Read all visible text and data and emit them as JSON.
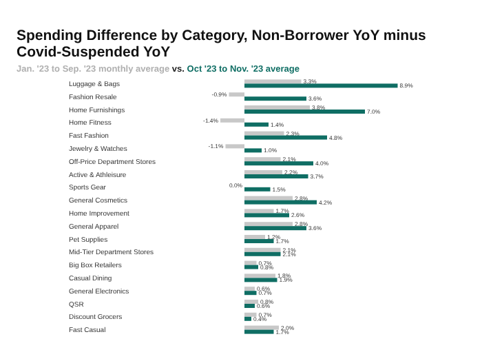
{
  "chart_data": {
    "type": "bar",
    "orientation": "horizontal",
    "title": "Spending Difference by Category, Non-Borrower YoY minus Covid-Suspended YoY",
    "legend_title": "vs.",
    "legend": "top",
    "categories": [
      "Luggage & Bags",
      "Fashion Resale",
      "Home Furnishings",
      "Home Fitness",
      "Fast Fashion",
      "Jewelry & Watches",
      "Off-Price Department Stores",
      "Active & Athleisure",
      "Sports Gear",
      "General Cosmetics",
      "Home Improvement",
      "General Apparel",
      "Pet Supplies",
      "Mid-Tier Department Stores",
      "Big Box Retailers",
      "Casual Dining",
      "General Electronics",
      "QSR",
      "Discount Grocers",
      "Fast Casual"
    ],
    "series": [
      {
        "name": "Jan. '23 to Sep. '23 monthly average",
        "color": "#c8c8c8",
        "values": [
          3.3,
          -0.9,
          3.8,
          -1.4,
          2.3,
          -1.1,
          2.1,
          2.2,
          0.0,
          2.8,
          1.7,
          2.8,
          1.2,
          2.1,
          0.7,
          1.8,
          0.6,
          0.8,
          0.7,
          2.0
        ],
        "value_labels": [
          "3.3%",
          "-0.9%",
          "3.8%",
          "-1.4%",
          "2.3%",
          "-1.1%",
          "2.1%",
          "2.2%",
          "0.0%",
          "2.8%",
          "1.7%",
          "2.8%",
          "1.2%",
          "2.1%",
          "0.7%",
          "1.8%",
          "0.6%",
          "0.8%",
          "0.7%",
          "2.0%"
        ]
      },
      {
        "name": "Oct '23 to Nov. '23 average",
        "color": "#0f6e64",
        "values": [
          8.9,
          3.6,
          7.0,
          1.4,
          4.8,
          1.0,
          4.0,
          3.7,
          1.5,
          4.2,
          2.6,
          3.6,
          1.7,
          2.1,
          0.8,
          1.9,
          0.7,
          0.6,
          0.4,
          1.7
        ],
        "value_labels": [
          "8.9%",
          "3.6%",
          "7.0%",
          "1.4%",
          "4.8%",
          "1.0%",
          "4.0%",
          "3.7%",
          "1.5%",
          "4.2%",
          "2.6%",
          "3.6%",
          "1.7%",
          "2.1%",
          "0.8%",
          "1.9%",
          "0.7%",
          "0.6%",
          "0.4%",
          "1.7%"
        ]
      }
    ]
  }
}
